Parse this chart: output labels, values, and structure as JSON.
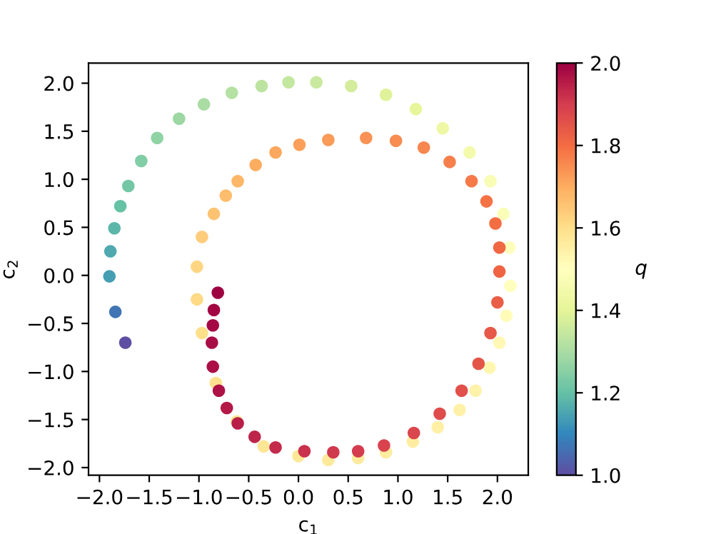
{
  "chart_data": {
    "type": "scatter",
    "xlabel": "c$_{1}$",
    "ylabel": "c$_{2}$",
    "clabel": "q",
    "x": [
      -1.74,
      -1.84,
      -1.9,
      -1.89,
      -1.85,
      -1.79,
      -1.71,
      -1.58,
      -1.42,
      -1.2,
      -0.95,
      -0.67,
      -0.37,
      -0.1,
      0.18,
      0.53,
      0.88,
      1.18,
      1.45,
      1.72,
      1.93,
      2.06,
      2.12,
      2.13,
      2.09,
      2.02,
      1.92,
      1.78,
      1.62,
      1.4,
      1.15,
      0.88,
      0.6,
      0.3,
      0.0,
      -0.35,
      -0.62,
      -0.83,
      -0.97,
      -1.02,
      -1.02,
      -0.97,
      -0.85,
      -0.73,
      -0.61,
      -0.43,
      -0.23,
      0.01,
      0.3,
      0.68,
      0.98,
      1.26,
      1.52,
      1.74,
      1.89,
      1.98,
      2.02,
      2.02,
      2.0,
      1.93,
      1.81,
      1.64,
      1.42,
      1.16,
      0.86,
      0.6,
      0.35,
      0.06,
      -0.23,
      -0.44,
      -0.61,
      -0.72,
      -0.8,
      -0.86,
      -0.87,
      -0.86,
      -0.85,
      -0.81
    ],
    "values": [
      -0.7,
      -0.38,
      -0.01,
      0.25,
      0.49,
      0.72,
      0.93,
      1.19,
      1.43,
      1.63,
      1.78,
      1.9,
      1.97,
      2.01,
      2.01,
      1.97,
      1.88,
      1.73,
      1.53,
      1.28,
      0.98,
      0.64,
      0.29,
      -0.11,
      -0.42,
      -0.7,
      -0.96,
      -1.2,
      -1.4,
      -1.58,
      -1.73,
      -1.84,
      -1.9,
      -1.92,
      -1.88,
      -1.78,
      -1.52,
      -1.12,
      -0.6,
      -0.25,
      0.09,
      0.4,
      0.64,
      0.83,
      0.98,
      1.15,
      1.28,
      1.36,
      1.41,
      1.43,
      1.4,
      1.33,
      1.18,
      0.98,
      0.77,
      0.54,
      0.29,
      0.04,
      -0.28,
      -0.6,
      -0.92,
      -1.2,
      -1.44,
      -1.64,
      -1.77,
      -1.83,
      -1.84,
      -1.83,
      -1.79,
      -1.68,
      -1.54,
      -1.38,
      -1.2,
      -0.95,
      -0.7,
      -0.52,
      -0.36,
      -0.18
    ],
    "cvalues": [
      1.0,
      1.07,
      1.14,
      1.16,
      1.18,
      1.2,
      1.22,
      1.24,
      1.26,
      1.28,
      1.3,
      1.32,
      1.33,
      1.34,
      1.35,
      1.37,
      1.39,
      1.41,
      1.43,
      1.45,
      1.47,
      1.48,
      1.49,
      1.5,
      1.51,
      1.52,
      1.53,
      1.54,
      1.545,
      1.55,
      1.555,
      1.56,
      1.565,
      1.57,
      1.575,
      1.58,
      1.585,
      1.59,
      1.6,
      1.61,
      1.62,
      1.64,
      1.66,
      1.67,
      1.68,
      1.7,
      1.71,
      1.72,
      1.73,
      1.74,
      1.75,
      1.76,
      1.77,
      1.78,
      1.79,
      1.8,
      1.81,
      1.82,
      1.83,
      1.84,
      1.85,
      1.86,
      1.87,
      1.88,
      1.89,
      1.9,
      1.91,
      1.92,
      1.93,
      1.94,
      1.95,
      1.96,
      1.97,
      1.975,
      1.98,
      1.985,
      1.99,
      2.0
    ],
    "xlim": [
      -2.11,
      2.31
    ],
    "ylim": [
      -2.08,
      2.21
    ],
    "xticks": [
      {
        "value": -2,
        "label": "−2.0"
      },
      {
        "value": -1.5,
        "label": "−1.5"
      },
      {
        "value": -1,
        "label": "−1.0"
      },
      {
        "value": -0.5,
        "label": "−0.5"
      },
      {
        "value": 0,
        "label": "0.0"
      },
      {
        "value": 0.5,
        "label": "0.5"
      },
      {
        "value": 1,
        "label": "1.0"
      },
      {
        "value": 1.5,
        "label": "1.5"
      },
      {
        "value": 2,
        "label": "2.0"
      }
    ],
    "yticks": [
      {
        "value": -2,
        "label": "−2.0"
      },
      {
        "value": -1.5,
        "label": "−1.5"
      },
      {
        "value": -1,
        "label": "−1.0"
      },
      {
        "value": -0.5,
        "label": "−0.5"
      },
      {
        "value": 0,
        "label": "0.0"
      },
      {
        "value": 0.5,
        "label": "0.5"
      },
      {
        "value": 1,
        "label": "1.0"
      },
      {
        "value": 1.5,
        "label": "1.5"
      },
      {
        "value": 2,
        "label": "2.0"
      }
    ],
    "clim": [
      1,
      2
    ],
    "cticks": [
      {
        "value": 1,
        "label": "1.0"
      },
      {
        "value": 1.2,
        "label": "1.2"
      },
      {
        "value": 1.4,
        "label": "1.4"
      },
      {
        "value": 1.6,
        "label": "1.6"
      },
      {
        "value": 1.8,
        "label": "1.8"
      },
      {
        "value": 2,
        "label": "2.0"
      }
    ],
    "grid": false,
    "legend": false
  }
}
